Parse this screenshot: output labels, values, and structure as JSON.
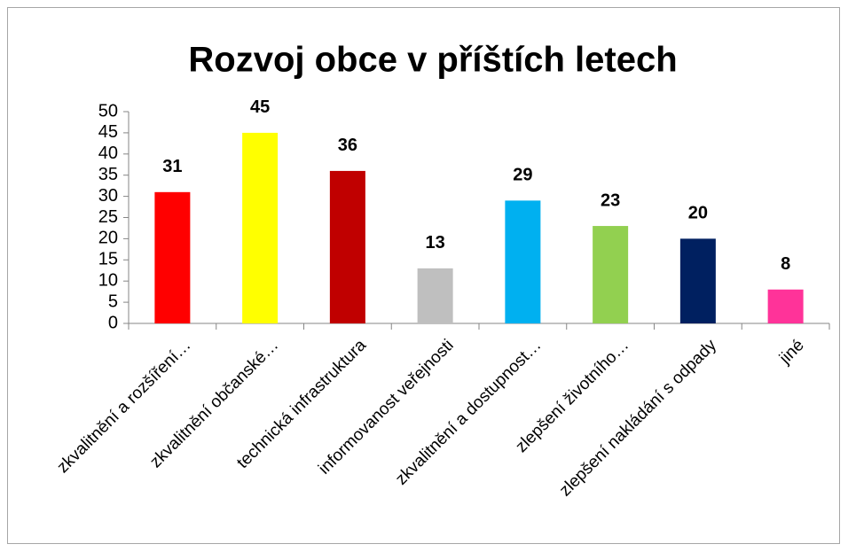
{
  "chart_data": {
    "type": "bar",
    "title": "Rozvoj obce v příštích letech",
    "categories": [
      "zkvalitnění a rozšíření…",
      "zkvalitnění občanské…",
      "technická infrastruktura",
      "informovanost veřejnosti",
      "zkvalitnění a dostupnost…",
      "zlepšení životního…",
      "zlepšení nakládání s odpady",
      "jiné"
    ],
    "values": [
      31,
      45,
      36,
      13,
      29,
      23,
      20,
      8
    ],
    "colors": [
      "#ff0000",
      "#ffff00",
      "#c00000",
      "#bfbfbf",
      "#00b0f0",
      "#92d050",
      "#002060",
      "#ff3399"
    ],
    "ylim": [
      0,
      50
    ],
    "yticks": [
      0,
      5,
      10,
      15,
      20,
      25,
      30,
      35,
      40,
      45,
      50
    ],
    "grid": false
  }
}
